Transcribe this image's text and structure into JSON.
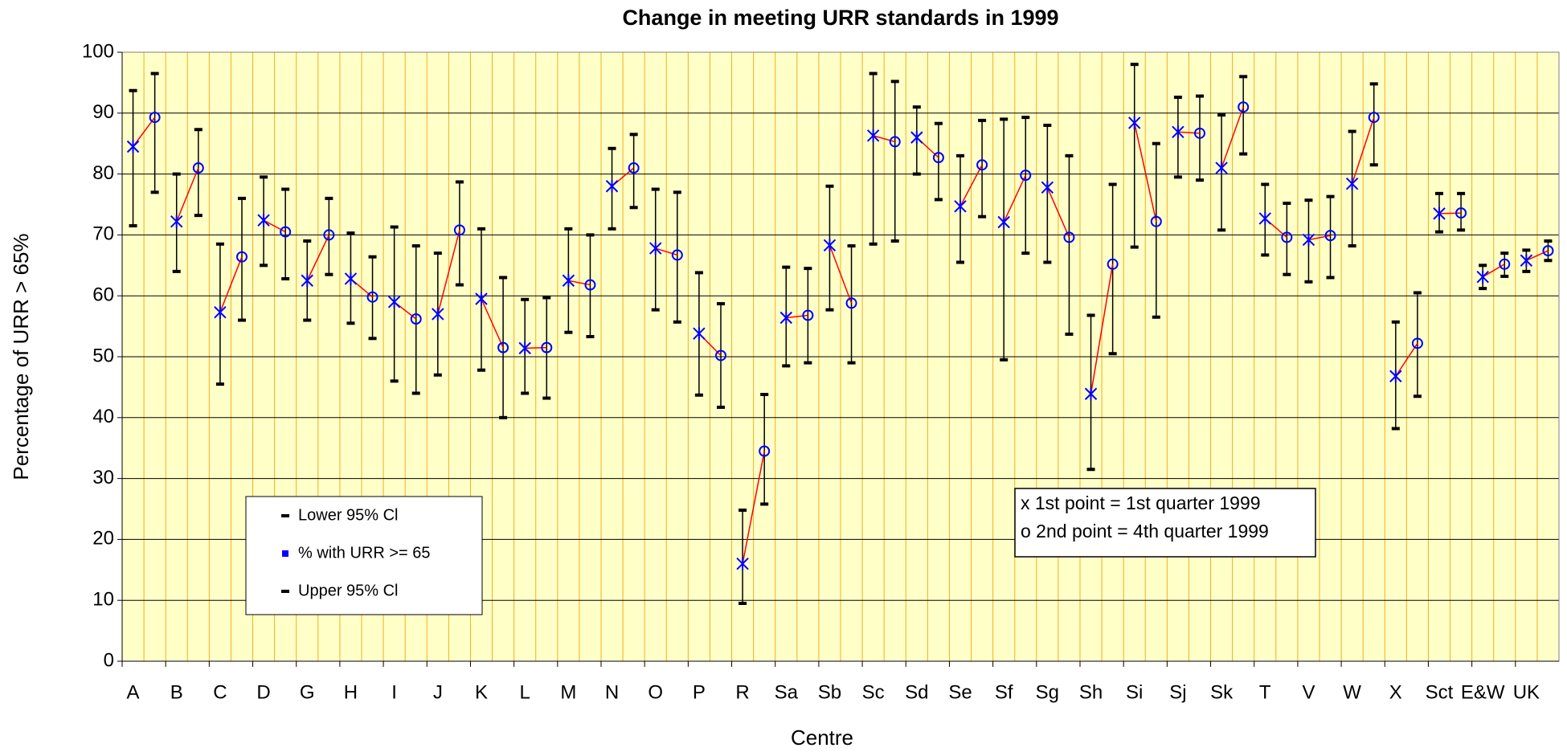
{
  "chart_data": {
    "type": "errorbar",
    "title": "Change in meeting URR standards in  1999",
    "xlabel": "Centre",
    "ylabel": "Percentage of URR > 65%",
    "categories": [
      "A",
      null,
      "B",
      null,
      "C",
      null,
      "D",
      null,
      "G",
      null,
      "H",
      null,
      "I",
      null,
      "J",
      null,
      "K",
      null,
      "L",
      null,
      "M",
      null,
      "N",
      null,
      "O",
      null,
      "P",
      null,
      "R",
      null,
      "Sa",
      null,
      "Sb",
      null,
      "Sc",
      null,
      "Sd",
      null,
      "Se",
      null,
      "Sf",
      null,
      "Sg",
      null,
      "Sh",
      null,
      "Si",
      null,
      "Sj",
      null,
      "Sk",
      null,
      "T",
      null,
      "V",
      null,
      "W",
      null,
      "X",
      null,
      "Sct",
      null,
      "E&W",
      null,
      "UK",
      null
    ],
    "series": [
      {
        "name": "Lower 95% Cl",
        "color": "#000000",
        "values": [
          71.5,
          77,
          64,
          73.2,
          45.5,
          56,
          65,
          62.8,
          56,
          63.5,
          55.5,
          53,
          46,
          44,
          47,
          61.8,
          47.8,
          40,
          44,
          43.2,
          54,
          53.3,
          71,
          74.5,
          57.7,
          55.7,
          43.7,
          41.7,
          9.5,
          25.8,
          48.5,
          49,
          57.7,
          49,
          68.5,
          69,
          80,
          75.8,
          65.5,
          73,
          49.5,
          67,
          65.5,
          53.7,
          31.5,
          50.5,
          68,
          56.5,
          79.5,
          79,
          70.8,
          83.3,
          66.7,
          63.5,
          62.3,
          63,
          68.2,
          81.5,
          38.2,
          43.5,
          70.5,
          70.8,
          61.2,
          63.2,
          64,
          65.8
        ]
      },
      {
        "name": "% with URR >= 65",
        "color": "#0000ff",
        "values": [
          84.5,
          89.3,
          72.2,
          81,
          57.3,
          66.4,
          72.4,
          70.5,
          62.5,
          70,
          62.8,
          59.8,
          59,
          56.2,
          57,
          70.8,
          59.5,
          51.5,
          51.4,
          51.5,
          62.5,
          61.8,
          78,
          81,
          67.8,
          66.7,
          53.8,
          50.2,
          16,
          34.5,
          56.4,
          56.8,
          68.3,
          58.8,
          86.3,
          85.3,
          86,
          82.7,
          74.7,
          81.5,
          72.1,
          79.8,
          77.8,
          69.6,
          43.9,
          65.2,
          88.4,
          72.2,
          86.9,
          86.7,
          81,
          91,
          72.7,
          69.6,
          69.2,
          69.9,
          78.4,
          89.3,
          46.8,
          52.2,
          73.5,
          73.6,
          63.1,
          65.2,
          65.8,
          67.4
        ]
      },
      {
        "name": "Upper 95% Cl",
        "color": "#000000",
        "values": [
          93.7,
          96.5,
          80,
          87.3,
          68.5,
          76,
          79.5,
          77.5,
          69,
          76,
          70.3,
          66.4,
          71.3,
          68.2,
          67,
          78.7,
          71,
          63,
          59.4,
          59.7,
          71,
          70,
          84.2,
          86.5,
          77.5,
          77,
          63.8,
          58.7,
          24.8,
          43.8,
          64.7,
          64.5,
          78,
          68.2,
          96.5,
          95.2,
          91,
          88.3,
          83,
          88.8,
          89,
          89.3,
          88,
          83,
          56.8,
          78.3,
          98,
          85,
          92.6,
          92.8,
          89.7,
          96,
          78.3,
          75.2,
          75.7,
          76.3,
          87,
          94.8,
          55.7,
          60.5,
          76.8,
          76.8,
          65,
          67,
          67.5,
          69
        ]
      }
    ],
    "line_color": "#ff0000",
    "ylim": [
      0,
      100
    ],
    "yticks": [
      0,
      10,
      20,
      30,
      40,
      50,
      60,
      70,
      80,
      90,
      100
    ],
    "grid": true,
    "annotations": [
      "x 1st point = 1st quarter 1999",
      "o 2nd point = 4th quarter 1999"
    ]
  }
}
